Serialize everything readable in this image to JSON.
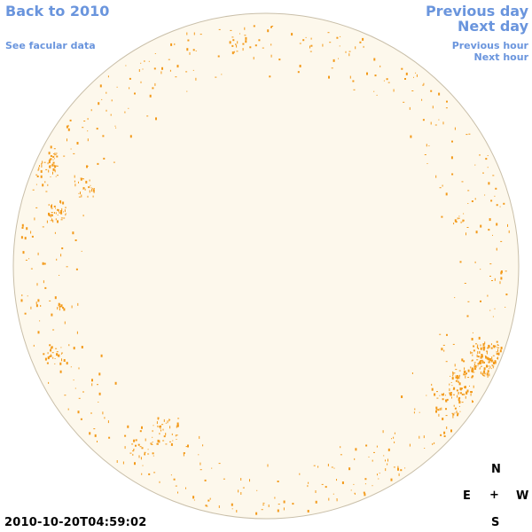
{
  "nav": {
    "back_label": "Back to 2010",
    "facular_label": "See facular data",
    "prev_day_label": "Previous day",
    "next_day_label": "Next day",
    "prev_hour_label": "Previous hour",
    "next_hour_label": "Next hour"
  },
  "compass": {
    "north": "N",
    "east": "E",
    "center": "+",
    "west": "W",
    "south": "S"
  },
  "timestamp": "2010-10-20T04:59:02",
  "colors": {
    "link": "#6a95dd",
    "disk_fill": "#fdf8ec",
    "disk_outline": "#c9bfa9",
    "facula": "#f39a1a"
  }
}
